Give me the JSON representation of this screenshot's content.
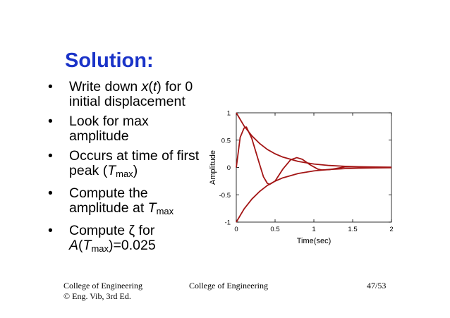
{
  "slide": {
    "title": "Solution:",
    "bullets": [
      {
        "parts": [
          {
            "t": "Write down "
          },
          {
            "t": "x",
            "i": true
          },
          {
            "t": "("
          },
          {
            "t": "t",
            "i": true
          },
          {
            "t": ") for 0 initial displacement"
          }
        ]
      },
      {
        "parts": [
          {
            "t": "Look for max amplitude"
          }
        ]
      },
      {
        "parts": [
          {
            "t": "Occurs at time of first peak ("
          },
          {
            "t": "T",
            "i": true
          },
          {
            "t": "max",
            "sub": true
          },
          {
            "t": ")"
          }
        ]
      },
      {
        "parts": [
          {
            "t": "Compute the amplitude at "
          },
          {
            "t": "T",
            "i": true
          },
          {
            "t": "max",
            "sub": true
          }
        ]
      },
      {
        "parts": [
          {
            "t": "Compute ζ for "
          },
          {
            "t": "A",
            "i": true
          },
          {
            "t": "("
          },
          {
            "t": "T",
            "i": true
          },
          {
            "t": "max",
            "sub": true
          },
          {
            "t": ")=0.025"
          }
        ]
      }
    ],
    "bullet_char": "•"
  },
  "footer": {
    "left_line1": "College of Engineering",
    "left_line2": "© Eng. Vib, 3rd Ed.",
    "center": "College of Engineering",
    "right": "47/53"
  },
  "chart_data": {
    "type": "line",
    "xlabel": "Time(sec)",
    "ylabel": "Amplitude",
    "xlim": [
      0,
      2
    ],
    "ylim": [
      -1,
      1
    ],
    "xticks": [
      0,
      0.5,
      1,
      1.5,
      2
    ],
    "xtick_labels": [
      "0",
      "0.5",
      "1",
      "1.5",
      "2"
    ],
    "yticks": [
      -1,
      -0.5,
      0,
      0.5,
      1
    ],
    "ytick_labels": [
      "-1",
      "-0.5",
      "0",
      "0.5",
      "1"
    ],
    "grid": false,
    "line_color": "#a31515",
    "series": [
      {
        "x": [
          0,
          0.1,
          0.2,
          0.3,
          0.4,
          0.5,
          0.6,
          0.8,
          1.0,
          1.2,
          1.4,
          1.6,
          1.8,
          2.0
        ],
        "y": [
          1.0,
          0.76,
          0.58,
          0.44,
          0.33,
          0.25,
          0.19,
          0.11,
          0.063,
          0.036,
          0.021,
          0.012,
          0.007,
          0.004
        ]
      },
      {
        "x": [
          0,
          0.1,
          0.2,
          0.3,
          0.4,
          0.5,
          0.6,
          0.8,
          1.0,
          1.2,
          1.4,
          1.6,
          1.8,
          2.0
        ],
        "y": [
          -1.0,
          -0.76,
          -0.58,
          -0.44,
          -0.33,
          -0.25,
          -0.19,
          -0.11,
          -0.063,
          -0.036,
          -0.021,
          -0.012,
          -0.007,
          -0.004
        ]
      },
      {
        "x": [
          0,
          0.05,
          0.1,
          0.13,
          0.2,
          0.3,
          0.35,
          0.4,
          0.43,
          0.5,
          0.6,
          0.7,
          0.78,
          0.85,
          0.95,
          1.05,
          1.1,
          1.2,
          1.3,
          1.4,
          1.45,
          1.55,
          1.65,
          1.75,
          1.8,
          1.9,
          2.0
        ],
        "y": [
          0,
          0.55,
          0.72,
          0.74,
          0.53,
          0.06,
          -0.17,
          -0.29,
          -0.31,
          -0.25,
          -0.03,
          0.14,
          0.18,
          0.15,
          0.05,
          -0.03,
          -0.045,
          -0.04,
          -0.015,
          0.01,
          0.012,
          0.008,
          0,
          -0.004,
          -0.003,
          0,
          0
        ]
      }
    ]
  }
}
